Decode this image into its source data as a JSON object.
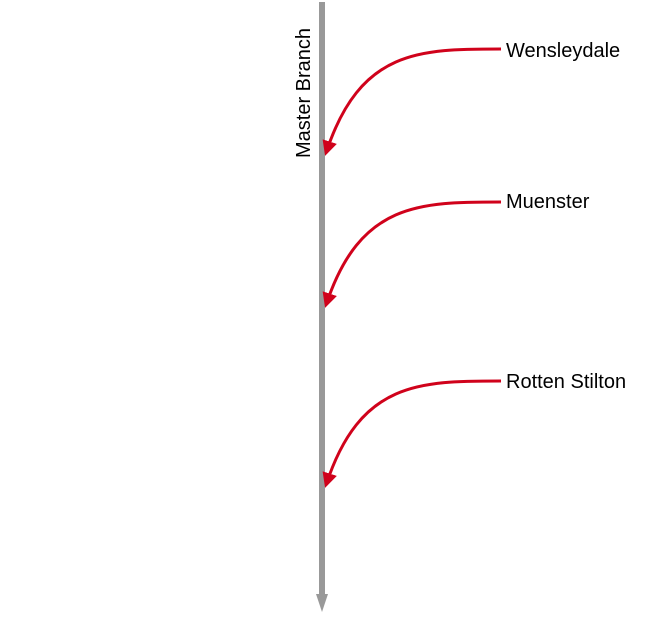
{
  "diagram": {
    "master_branch": {
      "label": "Master Branch",
      "color": "#999999"
    },
    "merge_color": "#d0021b",
    "merges": [
      {
        "label": "Wensleydale"
      },
      {
        "label": "Muenster"
      },
      {
        "label": "Rotten Stilton"
      }
    ]
  }
}
